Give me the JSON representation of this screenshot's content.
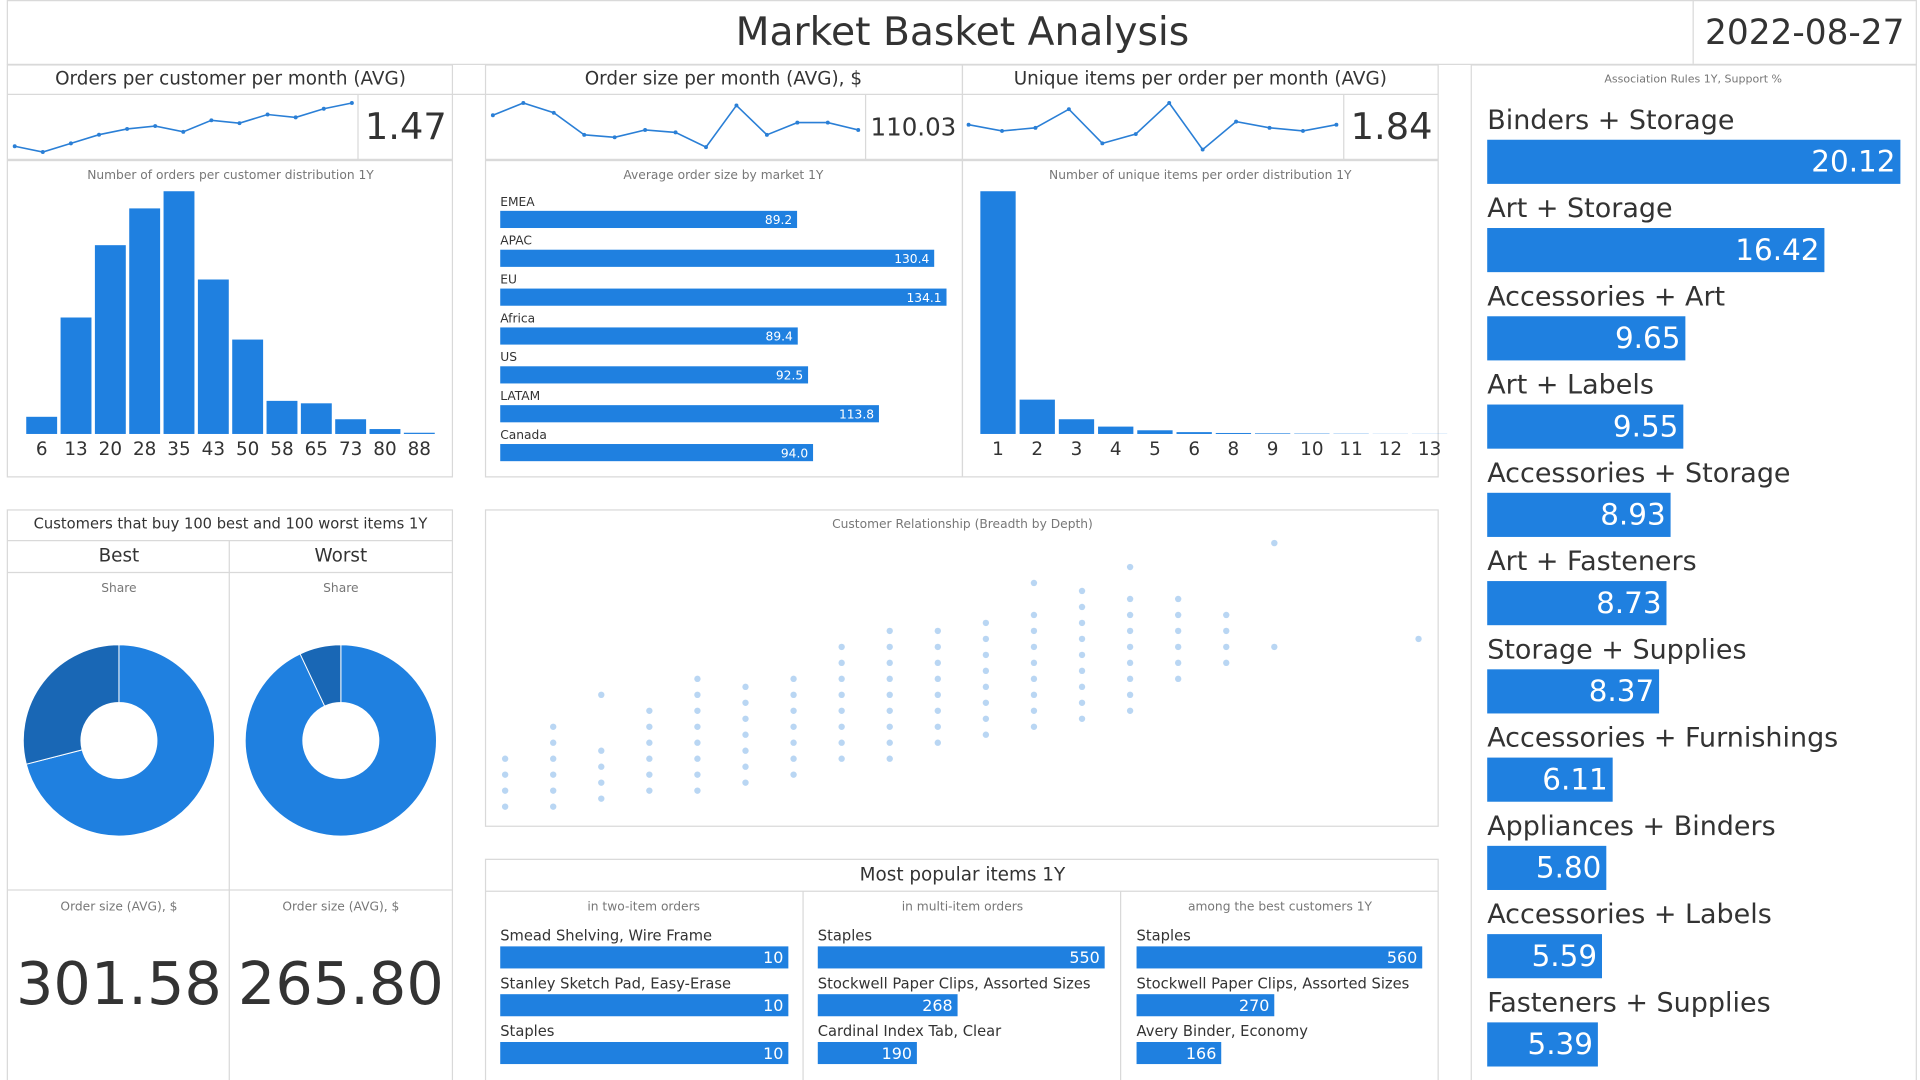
{
  "header": {
    "title": "Market Basket Analysis",
    "date": "2022-08-27"
  },
  "kpis": [
    {
      "title": "Orders per customer per month (AVG)",
      "value": "1.47",
      "trend": [
        1.4,
        1.38,
        1.41,
        1.44,
        1.46,
        1.47,
        1.45,
        1.49,
        1.48,
        1.51,
        1.5,
        1.53,
        1.55
      ]
    },
    {
      "title": "Order size per month (AVG), $",
      "value": "110.03",
      "trend": [
        112,
        117,
        113,
        104,
        103,
        106,
        105,
        99,
        116,
        104,
        109,
        109,
        106
      ]
    },
    {
      "title": "Unique items per order per month (AVG)",
      "value": "1.84",
      "trend": [
        1.86,
        1.84,
        1.85,
        1.91,
        1.8,
        1.83,
        1.93,
        1.78,
        1.87,
        1.85,
        1.84,
        1.86
      ]
    }
  ],
  "best_worst": {
    "title": "Customers that buy 100 best and 100 worst items 1Y",
    "columns": [
      {
        "name": "Best",
        "order_size_title": "Order size (AVG), $",
        "order_size": "301.58"
      },
      {
        "name": "Worst",
        "order_size_title": "Order size (AVG), $",
        "order_size": "265.80"
      }
    ]
  },
  "popular": {
    "title": "Most popular items 1Y"
  },
  "chart_data": [
    {
      "type": "column",
      "title": "Number of orders per customer distribution 1Y",
      "categories": [
        "6",
        "13",
        "20",
        "28",
        "35",
        "43",
        "50",
        "58",
        "65",
        "73",
        "80",
        "88"
      ],
      "values": [
        14,
        95,
        154,
        184,
        198,
        126,
        77,
        27,
        25,
        12,
        4,
        1
      ],
      "color": "#1f80e0"
    },
    {
      "type": "hbar",
      "title": "Average order size by market 1Y",
      "categories": [
        "EMEA",
        "APAC",
        "EU",
        "Africa",
        "US",
        "LATAM",
        "Canada"
      ],
      "values": [
        89.2,
        130.4,
        134.1,
        89.4,
        92.5,
        113.8,
        94.0
      ],
      "value_labels": [
        "89.2",
        "130.4",
        "134.1",
        "89.4",
        "92.5",
        "113.8",
        "94.0"
      ],
      "color": "#1f80e0"
    },
    {
      "type": "column",
      "title": "Number of unique items per order distribution 1Y",
      "categories": [
        "1",
        "2",
        "3",
        "4",
        "5",
        "6",
        "8",
        "9",
        "10",
        "11",
        "12",
        "13"
      ],
      "values": [
        198,
        28,
        12,
        6,
        3,
        1.5,
        0.8,
        0.5,
        0.3,
        0.2,
        0.1,
        0.1
      ],
      "color": "#1f80e0"
    },
    {
      "type": "pie",
      "title": "Share",
      "values": [
        71,
        29
      ],
      "colors": [
        "#1f80e0",
        "#1967b5"
      ]
    },
    {
      "type": "pie",
      "title": "Share",
      "values": [
        93,
        7
      ],
      "colors": [
        "#1f80e0",
        "#1967b5"
      ]
    },
    {
      "type": "scatter",
      "title": "Customer Relationship (Breadth by Depth)",
      "color": "#7fb5ea",
      "x": [
        1,
        1,
        1,
        1,
        2,
        2,
        2,
        2,
        2,
        2,
        3,
        3,
        3,
        3,
        3,
        4,
        4,
        4,
        4,
        4,
        4,
        5,
        5,
        5,
        5,
        5,
        5,
        5,
        5,
        6,
        6,
        6,
        6,
        6,
        6,
        6,
        7,
        7,
        7,
        7,
        7,
        7,
        7,
        8,
        8,
        8,
        8,
        8,
        8,
        8,
        8,
        9,
        9,
        9,
        9,
        9,
        9,
        9,
        9,
        9,
        10,
        10,
        10,
        10,
        10,
        10,
        10,
        10,
        11,
        11,
        11,
        11,
        11,
        11,
        11,
        11,
        12,
        12,
        12,
        12,
        12,
        12,
        12,
        12,
        12,
        13,
        13,
        13,
        13,
        13,
        13,
        13,
        13,
        13,
        14,
        14,
        14,
        14,
        14,
        14,
        14,
        14,
        14,
        15,
        15,
        15,
        15,
        15,
        15,
        16,
        16,
        16,
        16,
        17,
        17,
        20
      ],
      "y": [
        1,
        3,
        5,
        7,
        1,
        3,
        5,
        7,
        9,
        11,
        2,
        4,
        6,
        8,
        15,
        3,
        5,
        7,
        9,
        11,
        13,
        3,
        5,
        7,
        9,
        11,
        13,
        15,
        17,
        4,
        6,
        8,
        10,
        12,
        14,
        16,
        5,
        7,
        9,
        11,
        13,
        15,
        17,
        7,
        9,
        11,
        13,
        15,
        17,
        19,
        21,
        7,
        9,
        11,
        13,
        15,
        17,
        19,
        21,
        23,
        9,
        11,
        13,
        15,
        17,
        19,
        21,
        23,
        10,
        12,
        14,
        16,
        18,
        20,
        22,
        24,
        11,
        13,
        15,
        17,
        19,
        21,
        23,
        25,
        29,
        12,
        14,
        16,
        18,
        20,
        22,
        24,
        26,
        28,
        13,
        15,
        17,
        19,
        21,
        23,
        25,
        27,
        31,
        17,
        19,
        21,
        23,
        25,
        27,
        19,
        21,
        23,
        25,
        21,
        34,
        22
      ]
    },
    {
      "type": "hbar",
      "title": "in two-item orders",
      "categories": [
        "Smead Shelving, Wire Frame",
        "Stanley Sketch Pad, Easy-Erase",
        "Staples"
      ],
      "values": [
        10,
        10,
        10
      ],
      "color": "#1f80e0"
    },
    {
      "type": "hbar",
      "title": "in multi-item orders",
      "categories": [
        "Staples",
        "Stockwell Paper Clips, Assorted Sizes",
        "Cardinal Index Tab, Clear"
      ],
      "values": [
        550,
        268,
        190
      ],
      "color": "#1f80e0"
    },
    {
      "type": "hbar",
      "title": "among the best customers 1Y",
      "categories": [
        "Staples",
        "Stockwell Paper Clips, Assorted Sizes",
        "Avery Binder, Economy"
      ],
      "values": [
        560,
        270,
        166
      ],
      "color": "#1f80e0"
    },
    {
      "type": "hbar",
      "title": "Association Rules 1Y, Support %",
      "categories": [
        "Binders + Storage",
        "Art + Storage",
        "Accessories + Art",
        "Art + Labels",
        "Accessories + Storage",
        "Art + Fasteners",
        "Storage + Supplies",
        "Accessories + Furnishings",
        "Appliances + Binders",
        "Accessories + Labels",
        "Fasteners + Supplies"
      ],
      "values": [
        20.12,
        16.42,
        9.65,
        9.55,
        8.93,
        8.73,
        8.37,
        6.11,
        5.8,
        5.59,
        5.39
      ],
      "value_labels": [
        "20.12",
        "16.42",
        "9.65",
        "9.55",
        "8.93",
        "8.73",
        "8.37",
        "6.11",
        "5.80",
        "5.59",
        "5.39"
      ],
      "color": "#1f80e0"
    }
  ]
}
